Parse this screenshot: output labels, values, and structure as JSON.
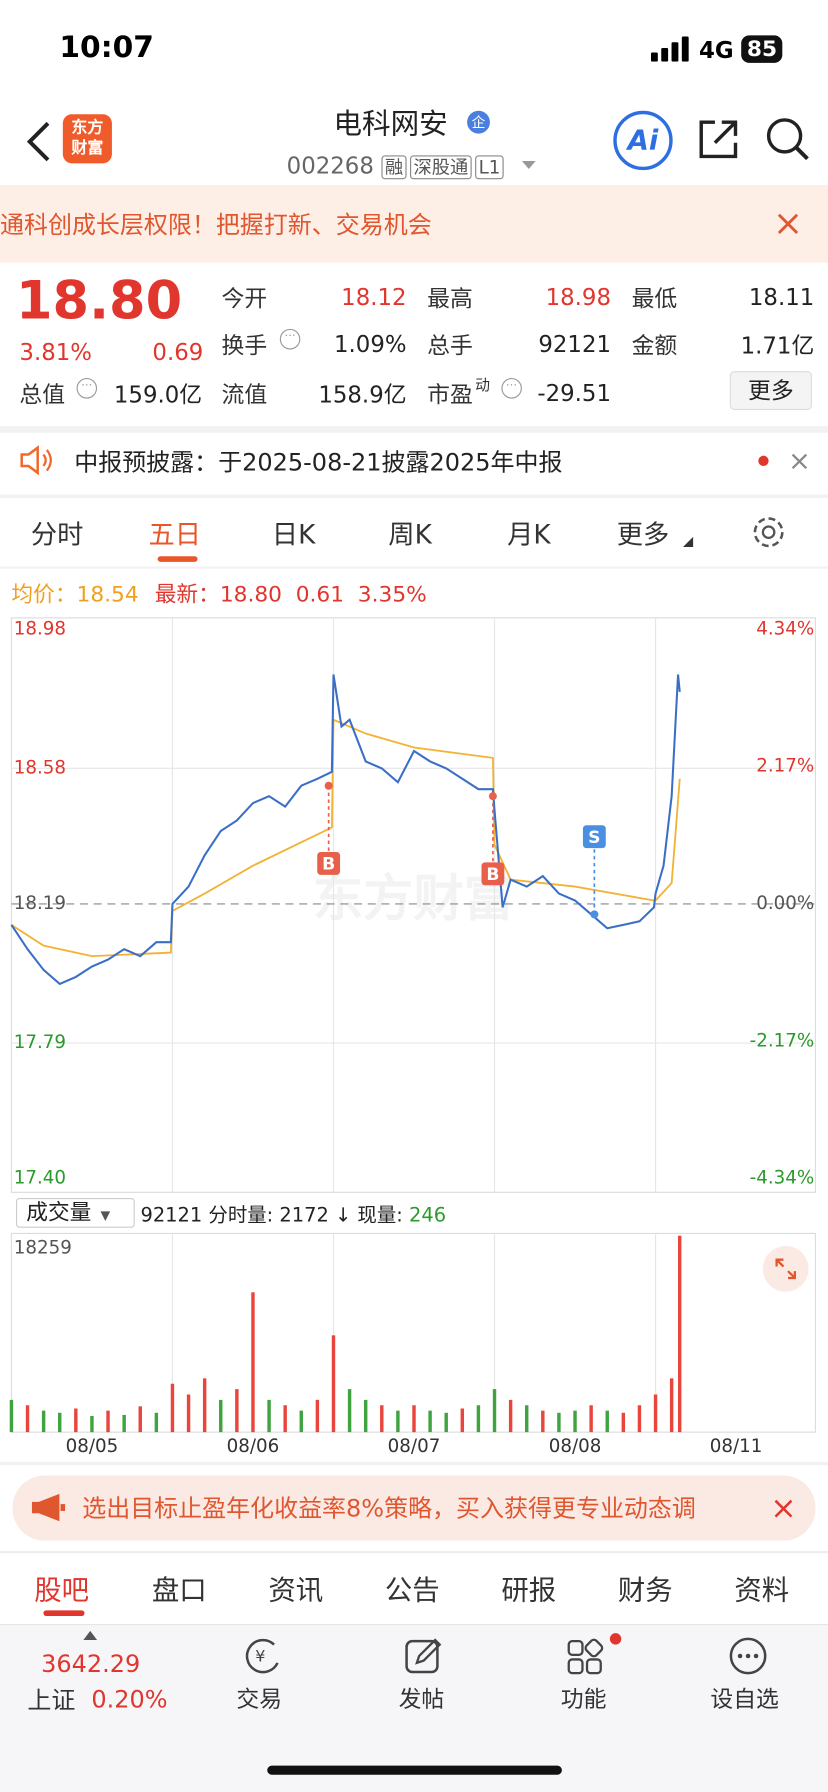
{
  "status": {
    "time": "10:07",
    "network": "4G",
    "battery": "85"
  },
  "header": {
    "logo": [
      "东方",
      "财富"
    ],
    "name": "电科网安",
    "badge": "企",
    "code": "002268",
    "tags": [
      "融",
      "深股通",
      "L1"
    ],
    "ai": "Ai"
  },
  "banner": {
    "text": "通科创成长层权限！把握打新、交易机会"
  },
  "quote": {
    "price": "18.80",
    "percent": "3.81%",
    "change": "0.69",
    "fields": [
      {
        "label": "今开",
        "value": "18.12"
      },
      {
        "label": "最高",
        "value": "18.98"
      },
      {
        "label": "最低",
        "value": "18.11"
      },
      {
        "label": "换手",
        "value": "1.09%"
      },
      {
        "label": "总手",
        "value": "92121"
      },
      {
        "label": "金额",
        "value": "1.71亿"
      },
      {
        "label": "总值",
        "value": "159.0亿"
      },
      {
        "label": "流值",
        "value": "158.9亿"
      },
      {
        "label": "市盈",
        "sup": "动",
        "value": "-29.51"
      }
    ],
    "more": "更多"
  },
  "notice": {
    "text": "中报预披露：于2025-08-21披露2025年中报"
  },
  "tabs": {
    "items": [
      "分时",
      "五日",
      "日K",
      "周K",
      "月K",
      "更多"
    ],
    "active": 1
  },
  "chart_info": {
    "avg_label": "均价：",
    "avg": "18.54",
    "last_label": "最新：",
    "last": "18.80",
    "change": "0.61",
    "percent": "3.35%"
  },
  "chart_data": [
    {
      "type": "line",
      "xlim": [
        0,
        5
      ],
      "xticks": [
        1,
        2,
        3,
        4
      ],
      "ylim": [
        17.4,
        18.98
      ],
      "yticks": [
        {
          "value": 17.4,
          "label": "17.40"
        },
        17.79,
        18.19,
        18.58,
        18.98
      ],
      "y2lim": [
        -4.34,
        4.34
      ],
      "y2ticks": [
        {
          "value": -4.34,
          "label": "-4.34%"
        },
        {
          "value": -2.17,
          "label": "-2.17%"
        },
        {
          "value": 0,
          "label": "0.00%"
        },
        {
          "value": 2.17,
          "label": "2.17%"
        },
        {
          "value": 4.34,
          "label": "4.34%"
        }
      ],
      "grid": true,
      "watermark": "东方财富",
      "series": [
        {
          "color": "#3b6fc6",
          "x": [
            0,
            0.1,
            0.2,
            0.3,
            0.4,
            0.5,
            0.6,
            0.7,
            0.8,
            0.9,
            0.99,
            1.0,
            1.1,
            1.2,
            1.3,
            1.4,
            1.5,
            1.6,
            1.7,
            1.8,
            1.9,
            1.99,
            2.0,
            2.05,
            2.1,
            2.2,
            2.3,
            2.4,
            2.5,
            2.6,
            2.7,
            2.8,
            2.9,
            2.99,
            3.0,
            3.05,
            3.1,
            3.2,
            3.3,
            3.4,
            3.5,
            3.6,
            3.7,
            3.8,
            3.9,
            3.99,
            4.0,
            4.05,
            4.1,
            4.14,
            4.15
          ],
          "values": [
            18.13,
            18.06,
            18.0,
            17.96,
            17.98,
            18.01,
            18.03,
            18.06,
            18.04,
            18.08,
            18.08,
            18.19,
            18.24,
            18.33,
            18.4,
            18.43,
            18.48,
            18.5,
            18.47,
            18.53,
            18.55,
            18.57,
            18.85,
            18.7,
            18.72,
            18.6,
            18.58,
            18.54,
            18.63,
            18.6,
            18.58,
            18.55,
            18.52,
            18.52,
            18.46,
            18.18,
            18.26,
            18.24,
            18.27,
            18.22,
            18.2,
            18.16,
            18.12,
            18.13,
            18.14,
            18.18,
            18.22,
            18.3,
            18.5,
            18.85,
            18.8
          ]
        },
        {
          "color": "#f2b233",
          "x": [
            0,
            0.2,
            0.5,
            0.99,
            1.0,
            1.2,
            1.5,
            1.99,
            2.0,
            2.2,
            2.5,
            2.99,
            3.0,
            3.1,
            3.5,
            3.99,
            4.0,
            4.1,
            4.15
          ],
          "values": [
            18.13,
            18.07,
            18.04,
            18.05,
            18.17,
            18.22,
            18.3,
            18.41,
            18.72,
            18.68,
            18.64,
            18.61,
            18.36,
            18.26,
            18.24,
            18.2,
            18.2,
            18.25,
            18.55
          ]
        }
      ],
      "markers": [
        {
          "label": "B",
          "x": 1.97,
          "value": 18.53,
          "color": "#e8604c"
        },
        {
          "label": "B",
          "x": 2.99,
          "value": 18.5,
          "color": "#e8604c"
        },
        {
          "label": "S",
          "x": 3.62,
          "value": 18.16,
          "color": "#4a90e2"
        }
      ]
    },
    {
      "type": "bar",
      "title": "成交量",
      "summary": {
        "total": "92121",
        "tick_label": "分时量:",
        "tick": "2172",
        "arrow": "↓",
        "now_label": "现量:",
        "now": "246"
      },
      "xlim": [
        0,
        5
      ],
      "ylim": [
        0,
        18259
      ],
      "yticks": [
        18259
      ],
      "categories": [
        "08/05",
        "08/06",
        "08/07",
        "08/08",
        "08/11"
      ],
      "x": [
        0,
        0.1,
        0.2,
        0.3,
        0.4,
        0.5,
        0.6,
        0.7,
        0.8,
        0.9,
        1.0,
        1.1,
        1.2,
        1.3,
        1.4,
        1.5,
        1.6,
        1.7,
        1.8,
        1.9,
        2.0,
        2.1,
        2.2,
        2.3,
        2.4,
        2.5,
        2.6,
        2.7,
        2.8,
        2.9,
        3.0,
        3.1,
        3.2,
        3.3,
        3.4,
        3.5,
        3.6,
        3.7,
        3.8,
        3.9,
        4.0,
        4.1,
        4.15
      ],
      "values": [
        3000,
        2500,
        2000,
        1800,
        2200,
        1500,
        2000,
        1600,
        2400,
        1800,
        4500,
        3500,
        5000,
        3000,
        4000,
        13000,
        3000,
        2500,
        2000,
        3000,
        9000,
        4000,
        3000,
        2500,
        2000,
        2500,
        2000,
        1800,
        2200,
        2500,
        4000,
        3000,
        2500,
        2000,
        1800,
        2000,
        2500,
        2000,
        1800,
        2500,
        3500,
        5000,
        18259
      ],
      "colors": [
        "#3fa33f",
        "#e8453c",
        "#3fa33f",
        "#3fa33f",
        "#e8453c",
        "#3fa33f",
        "#e8453c",
        "#3fa33f",
        "#e8453c",
        "#3fa33f",
        "#e8453c",
        "#e8453c",
        "#e8453c",
        "#3fa33f",
        "#e8453c",
        "#e8453c",
        "#3fa33f",
        "#e8453c",
        "#3fa33f",
        "#e8453c",
        "#e8453c",
        "#3fa33f",
        "#3fa33f",
        "#e8453c",
        "#3fa33f",
        "#e8453c",
        "#3fa33f",
        "#3fa33f",
        "#e8453c",
        "#3fa33f",
        "#3fa33f",
        "#e8453c",
        "#3fa33f",
        "#e8453c",
        "#3fa33f",
        "#3fa33f",
        "#e8453c",
        "#3fa33f",
        "#e8453c",
        "#e8453c",
        "#e8453c",
        "#e8453c",
        "#e8453c"
      ]
    }
  ],
  "ad": {
    "text": "选出目标止盈年化收益率8%策略，买入获得更专业动态调"
  },
  "bottom_tabs": {
    "items": [
      "股吧",
      "盘口",
      "资讯",
      "公告",
      "研报",
      "财务",
      "资料"
    ],
    "active": 0
  },
  "nav": {
    "index_value": "3642.29",
    "index_name": "上证",
    "index_change": "0.20%",
    "items": [
      "交易",
      "发帖",
      "功能",
      "设自选"
    ]
  }
}
